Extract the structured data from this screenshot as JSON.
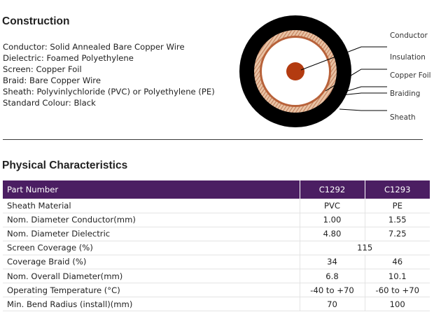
{
  "construction": {
    "title": "Construction",
    "specs": [
      {
        "label": "Conductor:",
        "value": "Solid Annealed Bare Copper Wire"
      },
      {
        "label": "Dielectric:",
        "value": "Foamed Polyethylene"
      },
      {
        "label": "Screen:",
        "value": "Copper Foil"
      },
      {
        "label": "Braid:",
        "value": "Bare Copper Wire"
      },
      {
        "label": "Sheath:",
        "value": "Polyvinlychloride (PVC) or Polyethylene (PE)"
      },
      {
        "label": "Standard Colour:",
        "value": "Black"
      }
    ],
    "diagram_labels": [
      "Conductor",
      "Insulation",
      "Copper Foil",
      "Braiding",
      "Sheath"
    ],
    "colors": {
      "sheath": "#000000",
      "braid": "#c8906a",
      "foil": "#b8623a",
      "conductor": "#b33b10",
      "insulation": "#ffffff"
    }
  },
  "physical": {
    "title": "Physical Characteristics",
    "header": {
      "label": "Part Number",
      "col1": "C1292",
      "col2": "C1293"
    },
    "rows": [
      {
        "label": "Sheath Material",
        "c1": "PVC",
        "c2": "PE"
      },
      {
        "label": "Nom. Diameter Conductor(mm)",
        "c1": "1.00",
        "c2": "1.55"
      },
      {
        "label": "Nom. Diameter Dielectric",
        "c1": "4.80",
        "c2": "7.25"
      },
      {
        "label": "Screen Coverage (%)",
        "merged": "115"
      },
      {
        "label": "Coverage Braid (%)",
        "c1": "34",
        "c2": "46"
      },
      {
        "label": "Nom. Overall Diameter(mm)",
        "c1": "6.8",
        "c2": "10.1"
      },
      {
        "label": "Operating Temperature (°C)",
        "c1": "-40 to +70",
        "c2": "-60 to +70"
      },
      {
        "label": "Min. Bend Radius (install)(mm)",
        "c1": "70",
        "c2": "100"
      }
    ],
    "colors": {
      "header_bg": "#4b1e62",
      "header_text": "#ffffff"
    }
  }
}
